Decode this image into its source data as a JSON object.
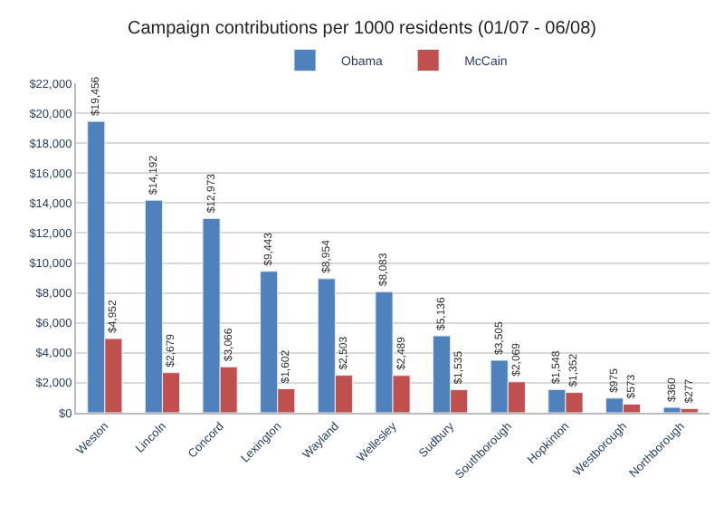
{
  "chart_data": {
    "type": "bar",
    "title": "Campaign contributions per 1000 residents (01/07 - 06/08)",
    "categories": [
      "Weston",
      "Lincoln",
      "Concord",
      "Lexington",
      "Wayland",
      "Wellesley",
      "Sudbury",
      "Southborough",
      "Hopkinton",
      "Westborough",
      "Northborough"
    ],
    "series": [
      {
        "name": "Obama",
        "color": "#4f81bd",
        "values": [
          19456,
          14192,
          12973,
          9443,
          8954,
          8083,
          5136,
          3505,
          1548,
          975,
          360
        ],
        "value_labels": [
          "$19,456",
          "$14,192",
          "$12,973",
          "$9,443",
          "$8,954",
          "$8,083",
          "$5,136",
          "$3,505",
          "$1,548",
          "$975",
          "$360"
        ]
      },
      {
        "name": "McCain",
        "color": "#c0504d",
        "values": [
          4952,
          2679,
          3066,
          1602,
          2503,
          2489,
          1535,
          2069,
          1352,
          573,
          277
        ],
        "value_labels": [
          "$4,952",
          "$2,679",
          "$3,066",
          "$1,602",
          "$2,503",
          "$2,489",
          "$1,535",
          "$2,069",
          "$1,352",
          "$573",
          "$277"
        ]
      }
    ],
    "ylim": [
      0,
      22000
    ],
    "yticks": [
      {
        "value": 0,
        "label": "$0"
      },
      {
        "value": 2000,
        "label": "$2,000"
      },
      {
        "value": 4000,
        "label": "$4,000"
      },
      {
        "value": 6000,
        "label": "$6,000"
      },
      {
        "value": 8000,
        "label": "$8,000"
      },
      {
        "value": 10000,
        "label": "$10,000"
      },
      {
        "value": 12000,
        "label": "$12,000"
      },
      {
        "value": 14000,
        "label": "$14,000"
      },
      {
        "value": 16000,
        "label": "$16,000"
      },
      {
        "value": 18000,
        "label": "$18,000"
      },
      {
        "value": 20000,
        "label": "$20,000"
      },
      {
        "value": 22000,
        "label": "$22,000"
      }
    ],
    "grid": "y",
    "legend": "top"
  }
}
